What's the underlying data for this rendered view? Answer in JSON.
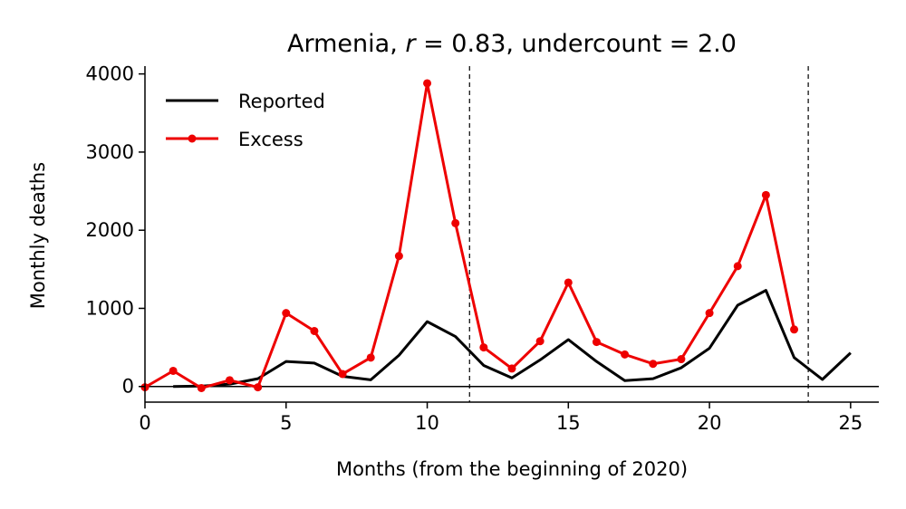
{
  "chart_data": {
    "type": "line",
    "title_text": "Armenia, ",
    "title_r_symbol": "r",
    "title_rest": " = 0.83, undercount = 2.0",
    "xlabel": "Months (from the beginning of 2020)",
    "ylabel": "Monthly deaths",
    "xlim": [
      0,
      26
    ],
    "ylim": [
      -200,
      4100
    ],
    "xticks": [
      0,
      5,
      10,
      15,
      20,
      25
    ],
    "yticks": [
      0,
      1000,
      2000,
      3000,
      4000
    ],
    "xtick_labels": [
      "0",
      "5",
      "10",
      "15",
      "20",
      "25"
    ],
    "ytick_labels": [
      "0",
      "1000",
      "2000",
      "3000",
      "4000"
    ],
    "vlines": [
      11.5,
      23.5
    ],
    "hline": 0,
    "legend_position": "top-left",
    "series": [
      {
        "name": "Reported",
        "color": "#000000",
        "marker": false,
        "x": [
          1,
          2,
          3,
          4,
          5,
          6,
          7,
          8,
          9,
          10,
          11,
          12,
          13,
          14,
          15,
          16,
          17,
          18,
          19,
          20,
          21,
          22,
          23,
          24,
          25
        ],
        "y": [
          0,
          5,
          30,
          100,
          320,
          300,
          130,
          85,
          400,
          830,
          640,
          270,
          110,
          340,
          600,
          320,
          75,
          100,
          240,
          490,
          1040,
          1230,
          370,
          90,
          430
        ]
      },
      {
        "name": "Excess",
        "color": "#ee0000",
        "marker": true,
        "x": [
          0,
          1,
          2,
          3,
          4,
          5,
          6,
          7,
          8,
          9,
          10,
          11,
          12,
          13,
          14,
          15,
          16,
          17,
          18,
          19,
          20,
          21,
          22,
          23
        ],
        "y": [
          -10,
          200,
          -20,
          80,
          -10,
          940,
          710,
          160,
          370,
          1670,
          3880,
          2090,
          500,
          230,
          580,
          1330,
          570,
          410,
          290,
          350,
          940,
          1540,
          2450,
          730
        ]
      }
    ]
  }
}
